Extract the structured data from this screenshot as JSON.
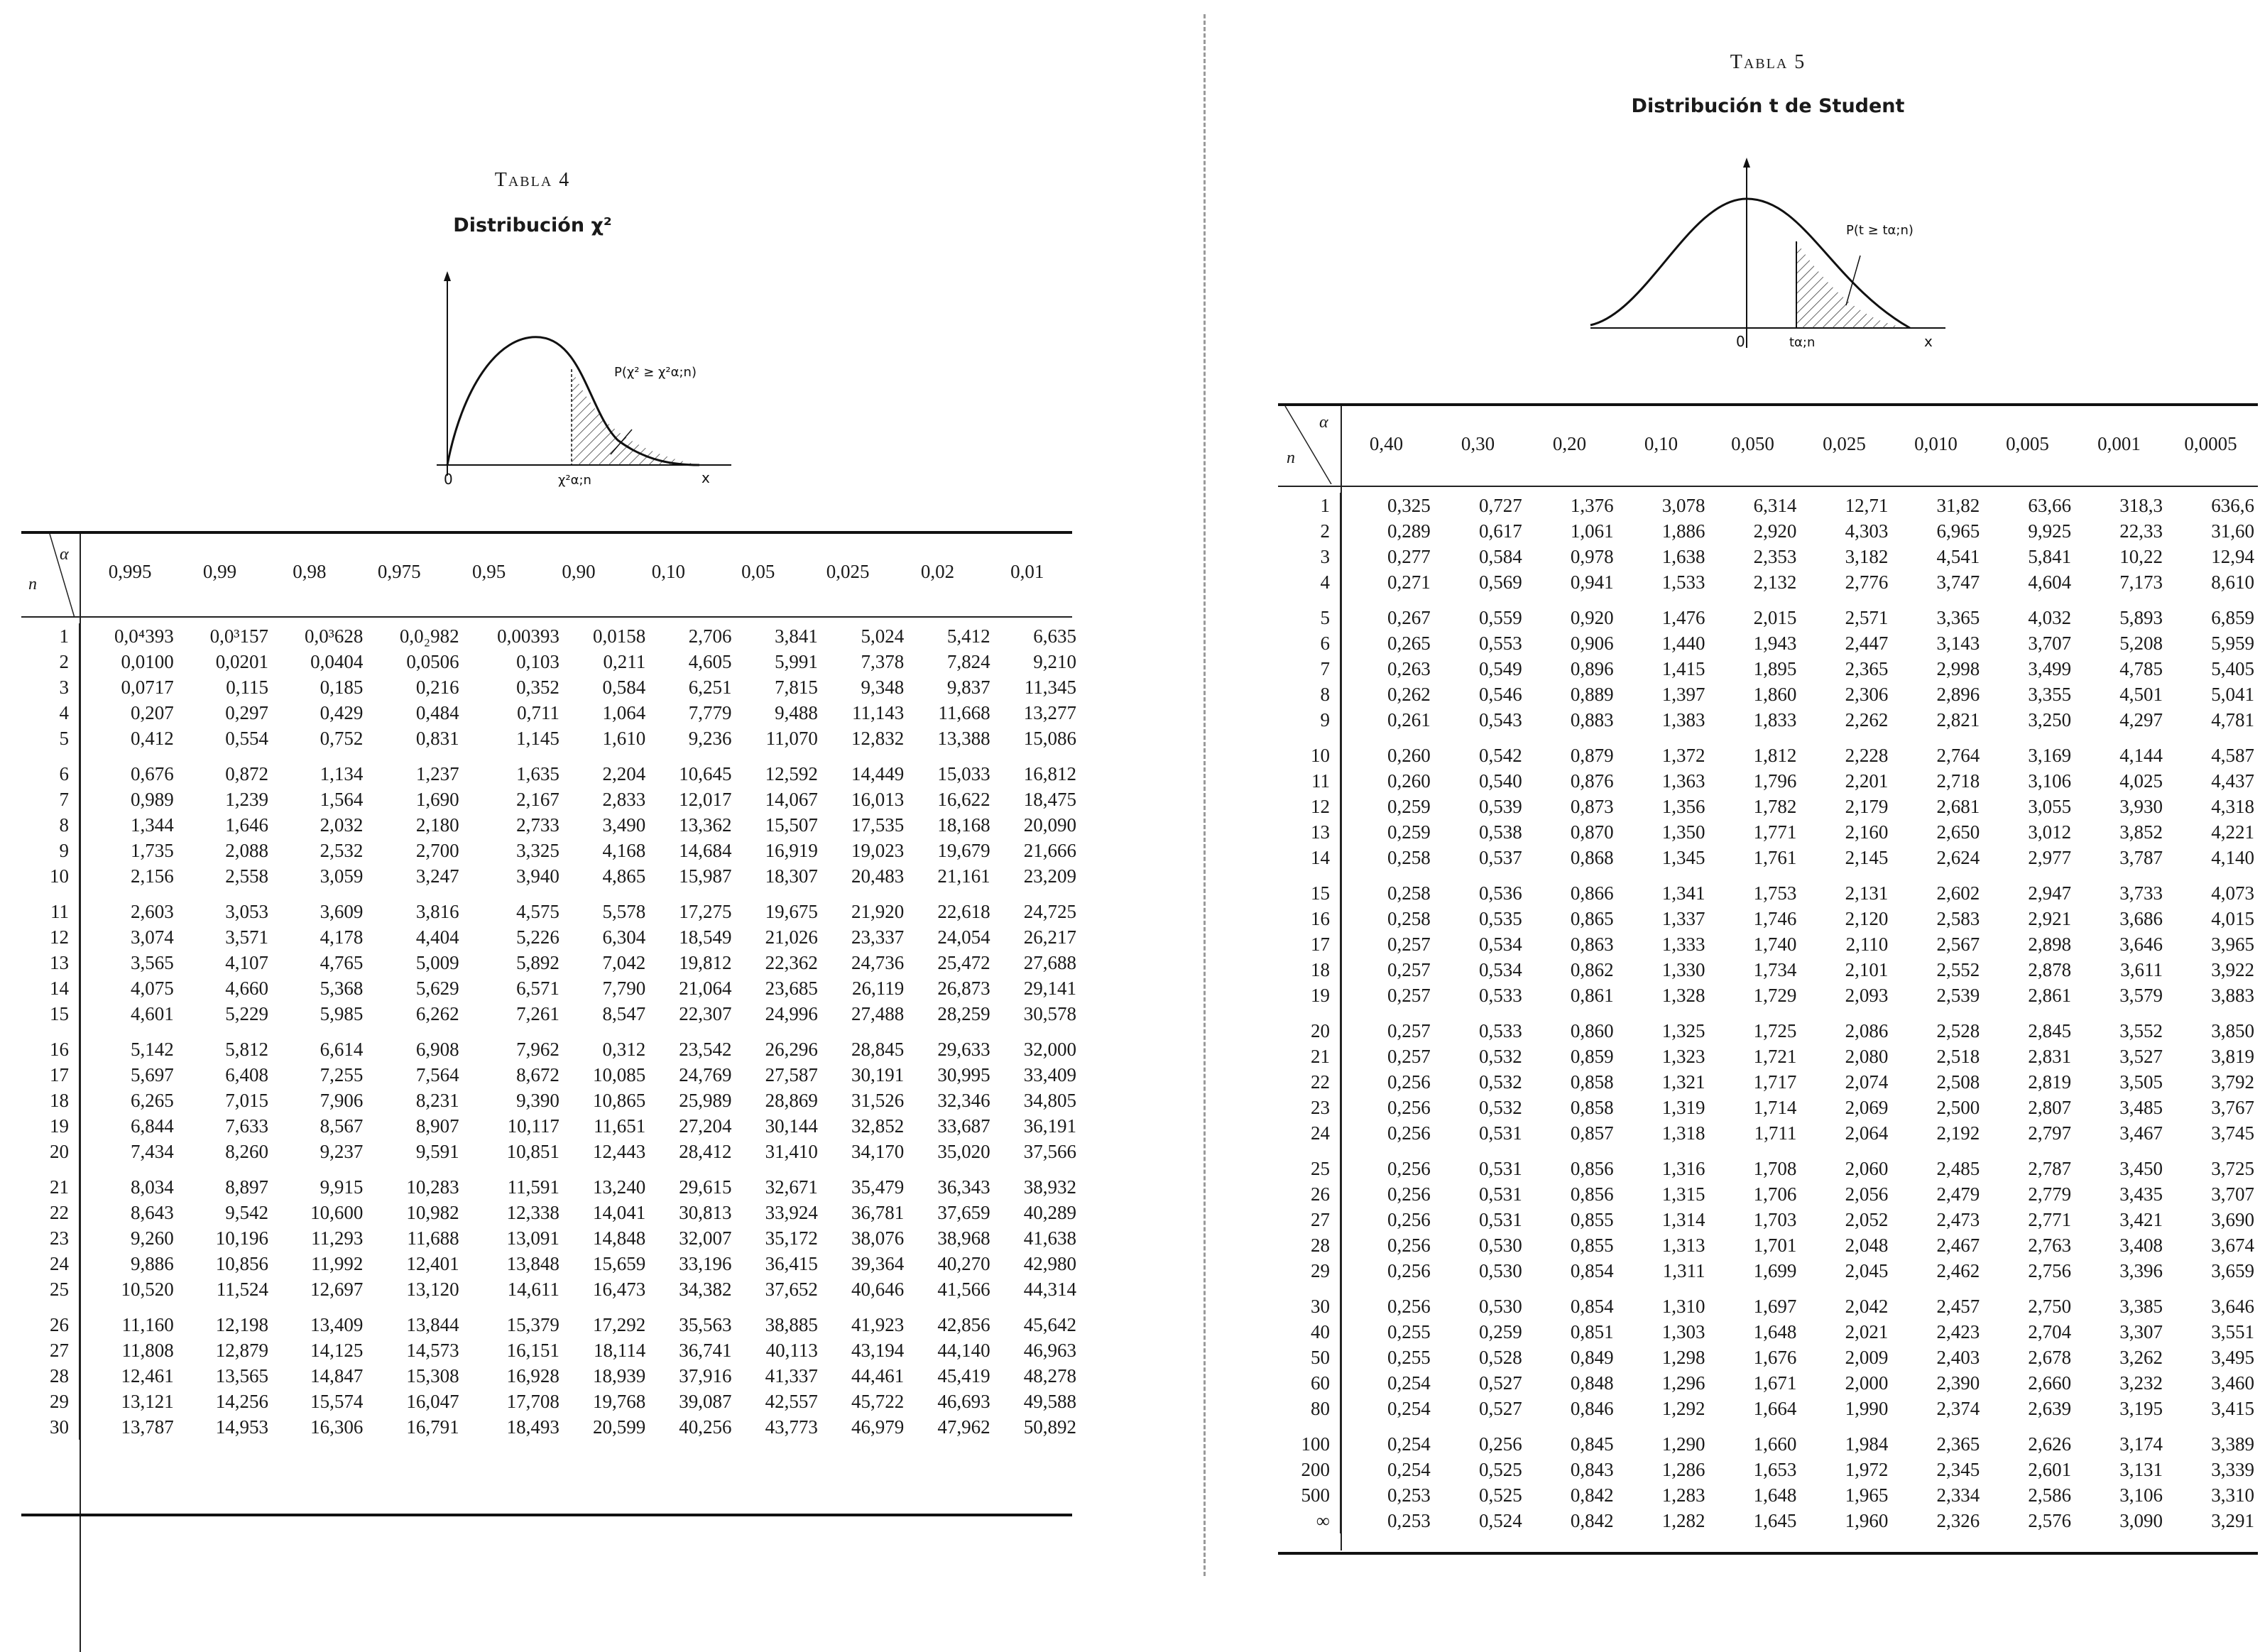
{
  "chi2": {
    "table_label": "Tabla 4",
    "title": "Distribución χ²",
    "graph": {
      "probability_label": "P(χ² ≥ χ²α;n)",
      "crit_label": "χ²α;n",
      "origin_label": "0",
      "x_label": "x"
    },
    "row_header": "n",
    "col_header": "α",
    "alphas": [
      "0,995",
      "0,99",
      "0,98",
      "0,975",
      "0,95",
      "0,90",
      "0,10",
      "0,05",
      "0,025",
      "0,02",
      "0,01"
    ],
    "rows": [
      {
        "n": "1",
        "v": [
          "0,0⁴393",
          "0,0³157",
          "0,0³628",
          "0,0₂982",
          "0,00393",
          "0,0158",
          "2,706",
          "3,841",
          "5,024",
          "5,412",
          "6,635"
        ]
      },
      {
        "n": "2",
        "v": [
          "0,0100",
          "0,0201",
          "0,0404",
          "0,0506",
          "0,103",
          "0,211",
          "4,605",
          "5,991",
          "7,378",
          "7,824",
          "9,210"
        ]
      },
      {
        "n": "3",
        "v": [
          "0,0717",
          "0,115",
          "0,185",
          "0,216",
          "0,352",
          "0,584",
          "6,251",
          "7,815",
          "9,348",
          "9,837",
          "11,345"
        ]
      },
      {
        "n": "4",
        "v": [
          "0,207",
          "0,297",
          "0,429",
          "0,484",
          "0,711",
          "1,064",
          "7,779",
          "9,488",
          "11,143",
          "11,668",
          "13,277"
        ]
      },
      {
        "n": "5",
        "v": [
          "0,412",
          "0,554",
          "0,752",
          "0,831",
          "1,145",
          "1,610",
          "9,236",
          "11,070",
          "12,832",
          "13,388",
          "15,086"
        ]
      },
      {
        "n": "6",
        "v": [
          "0,676",
          "0,872",
          "1,134",
          "1,237",
          "1,635",
          "2,204",
          "10,645",
          "12,592",
          "14,449",
          "15,033",
          "16,812"
        ]
      },
      {
        "n": "7",
        "v": [
          "0,989",
          "1,239",
          "1,564",
          "1,690",
          "2,167",
          "2,833",
          "12,017",
          "14,067",
          "16,013",
          "16,622",
          "18,475"
        ]
      },
      {
        "n": "8",
        "v": [
          "1,344",
          "1,646",
          "2,032",
          "2,180",
          "2,733",
          "3,490",
          "13,362",
          "15,507",
          "17,535",
          "18,168",
          "20,090"
        ]
      },
      {
        "n": "9",
        "v": [
          "1,735",
          "2,088",
          "2,532",
          "2,700",
          "3,325",
          "4,168",
          "14,684",
          "16,919",
          "19,023",
          "19,679",
          "21,666"
        ]
      },
      {
        "n": "10",
        "v": [
          "2,156",
          "2,558",
          "3,059",
          "3,247",
          "3,940",
          "4,865",
          "15,987",
          "18,307",
          "20,483",
          "21,161",
          "23,209"
        ]
      },
      {
        "n": "11",
        "v": [
          "2,603",
          "3,053",
          "3,609",
          "3,816",
          "4,575",
          "5,578",
          "17,275",
          "19,675",
          "21,920",
          "22,618",
          "24,725"
        ]
      },
      {
        "n": "12",
        "v": [
          "3,074",
          "3,571",
          "4,178",
          "4,404",
          "5,226",
          "6,304",
          "18,549",
          "21,026",
          "23,337",
          "24,054",
          "26,217"
        ]
      },
      {
        "n": "13",
        "v": [
          "3,565",
          "4,107",
          "4,765",
          "5,009",
          "5,892",
          "7,042",
          "19,812",
          "22,362",
          "24,736",
          "25,472",
          "27,688"
        ]
      },
      {
        "n": "14",
        "v": [
          "4,075",
          "4,660",
          "5,368",
          "5,629",
          "6,571",
          "7,790",
          "21,064",
          "23,685",
          "26,119",
          "26,873",
          "29,141"
        ]
      },
      {
        "n": "15",
        "v": [
          "4,601",
          "5,229",
          "5,985",
          "6,262",
          "7,261",
          "8,547",
          "22,307",
          "24,996",
          "27,488",
          "28,259",
          "30,578"
        ]
      },
      {
        "n": "16",
        "v": [
          "5,142",
          "5,812",
          "6,614",
          "6,908",
          "7,962",
          "0,312",
          "23,542",
          "26,296",
          "28,845",
          "29,633",
          "32,000"
        ]
      },
      {
        "n": "17",
        "v": [
          "5,697",
          "6,408",
          "7,255",
          "7,564",
          "8,672",
          "10,085",
          "24,769",
          "27,587",
          "30,191",
          "30,995",
          "33,409"
        ]
      },
      {
        "n": "18",
        "v": [
          "6,265",
          "7,015",
          "7,906",
          "8,231",
          "9,390",
          "10,865",
          "25,989",
          "28,869",
          "31,526",
          "32,346",
          "34,805"
        ]
      },
      {
        "n": "19",
        "v": [
          "6,844",
          "7,633",
          "8,567",
          "8,907",
          "10,117",
          "11,651",
          "27,204",
          "30,144",
          "32,852",
          "33,687",
          "36,191"
        ]
      },
      {
        "n": "20",
        "v": [
          "7,434",
          "8,260",
          "9,237",
          "9,591",
          "10,851",
          "12,443",
          "28,412",
          "31,410",
          "34,170",
          "35,020",
          "37,566"
        ]
      },
      {
        "n": "21",
        "v": [
          "8,034",
          "8,897",
          "9,915",
          "10,283",
          "11,591",
          "13,240",
          "29,615",
          "32,671",
          "35,479",
          "36,343",
          "38,932"
        ]
      },
      {
        "n": "22",
        "v": [
          "8,643",
          "9,542",
          "10,600",
          "10,982",
          "12,338",
          "14,041",
          "30,813",
          "33,924",
          "36,781",
          "37,659",
          "40,289"
        ]
      },
      {
        "n": "23",
        "v": [
          "9,260",
          "10,196",
          "11,293",
          "11,688",
          "13,091",
          "14,848",
          "32,007",
          "35,172",
          "38,076",
          "38,968",
          "41,638"
        ]
      },
      {
        "n": "24",
        "v": [
          "9,886",
          "10,856",
          "11,992",
          "12,401",
          "13,848",
          "15,659",
          "33,196",
          "36,415",
          "39,364",
          "40,270",
          "42,980"
        ]
      },
      {
        "n": "25",
        "v": [
          "10,520",
          "11,524",
          "12,697",
          "13,120",
          "14,611",
          "16,473",
          "34,382",
          "37,652",
          "40,646",
          "41,566",
          "44,314"
        ]
      },
      {
        "n": "26",
        "v": [
          "11,160",
          "12,198",
          "13,409",
          "13,844",
          "15,379",
          "17,292",
          "35,563",
          "38,885",
          "41,923",
          "42,856",
          "45,642"
        ]
      },
      {
        "n": "27",
        "v": [
          "11,808",
          "12,879",
          "14,125",
          "14,573",
          "16,151",
          "18,114",
          "36,741",
          "40,113",
          "43,194",
          "44,140",
          "46,963"
        ]
      },
      {
        "n": "28",
        "v": [
          "12,461",
          "13,565",
          "14,847",
          "15,308",
          "16,928",
          "18,939",
          "37,916",
          "41,337",
          "44,461",
          "45,419",
          "48,278"
        ]
      },
      {
        "n": "29",
        "v": [
          "13,121",
          "14,256",
          "15,574",
          "16,047",
          "17,708",
          "19,768",
          "39,087",
          "42,557",
          "45,722",
          "46,693",
          "49,588"
        ]
      },
      {
        "n": "30",
        "v": [
          "13,787",
          "14,953",
          "16,306",
          "16,791",
          "18,493",
          "20,599",
          "40,256",
          "43,773",
          "46,979",
          "47,962",
          "50,892"
        ]
      }
    ]
  },
  "student": {
    "table_label": "Tabla 5",
    "title": "Distribución t de Student",
    "graph": {
      "probability_label": "P(t ≥ tα;n)",
      "crit_label": "tα;n",
      "origin_label": "0",
      "x_label": "x"
    },
    "row_header": "n",
    "col_header": "α",
    "alphas": [
      "0,40",
      "0,30",
      "0,20",
      "0,10",
      "0,050",
      "0,025",
      "0,010",
      "0,005",
      "0,001",
      "0,0005"
    ],
    "rows": [
      {
        "n": "1",
        "v": [
          "0,325",
          "0,727",
          "1,376",
          "3,078",
          "6,314",
          "12,71",
          "31,82",
          "63,66",
          "318,3",
          "636,6"
        ]
      },
      {
        "n": "2",
        "v": [
          "0,289",
          "0,617",
          "1,061",
          "1,886",
          "2,920",
          "4,303",
          "6,965",
          "9,925",
          "22,33",
          "31,60"
        ]
      },
      {
        "n": "3",
        "v": [
          "0,277",
          "0,584",
          "0,978",
          "1,638",
          "2,353",
          "3,182",
          "4,541",
          "5,841",
          "10,22",
          "12,94"
        ]
      },
      {
        "n": "4",
        "v": [
          "0,271",
          "0,569",
          "0,941",
          "1,533",
          "2,132",
          "2,776",
          "3,747",
          "4,604",
          "7,173",
          "8,610"
        ]
      },
      {
        "n": "5",
        "v": [
          "0,267",
          "0,559",
          "0,920",
          "1,476",
          "2,015",
          "2,571",
          "3,365",
          "4,032",
          "5,893",
          "6,859"
        ]
      },
      {
        "n": "6",
        "v": [
          "0,265",
          "0,553",
          "0,906",
          "1,440",
          "1,943",
          "2,447",
          "3,143",
          "3,707",
          "5,208",
          "5,959"
        ]
      },
      {
        "n": "7",
        "v": [
          "0,263",
          "0,549",
          "0,896",
          "1,415",
          "1,895",
          "2,365",
          "2,998",
          "3,499",
          "4,785",
          "5,405"
        ]
      },
      {
        "n": "8",
        "v": [
          "0,262",
          "0,546",
          "0,889",
          "1,397",
          "1,860",
          "2,306",
          "2,896",
          "3,355",
          "4,501",
          "5,041"
        ]
      },
      {
        "n": "9",
        "v": [
          "0,261",
          "0,543",
          "0,883",
          "1,383",
          "1,833",
          "2,262",
          "2,821",
          "3,250",
          "4,297",
          "4,781"
        ]
      },
      {
        "n": "10",
        "v": [
          "0,260",
          "0,542",
          "0,879",
          "1,372",
          "1,812",
          "2,228",
          "2,764",
          "3,169",
          "4,144",
          "4,587"
        ]
      },
      {
        "n": "11",
        "v": [
          "0,260",
          "0,540",
          "0,876",
          "1,363",
          "1,796",
          "2,201",
          "2,718",
          "3,106",
          "4,025",
          "4,437"
        ]
      },
      {
        "n": "12",
        "v": [
          "0,259",
          "0,539",
          "0,873",
          "1,356",
          "1,782",
          "2,179",
          "2,681",
          "3,055",
          "3,930",
          "4,318"
        ]
      },
      {
        "n": "13",
        "v": [
          "0,259",
          "0,538",
          "0,870",
          "1,350",
          "1,771",
          "2,160",
          "2,650",
          "3,012",
          "3,852",
          "4,221"
        ]
      },
      {
        "n": "14",
        "v": [
          "0,258",
          "0,537",
          "0,868",
          "1,345",
          "1,761",
          "2,145",
          "2,624",
          "2,977",
          "3,787",
          "4,140"
        ]
      },
      {
        "n": "15",
        "v": [
          "0,258",
          "0,536",
          "0,866",
          "1,341",
          "1,753",
          "2,131",
          "2,602",
          "2,947",
          "3,733",
          "4,073"
        ]
      },
      {
        "n": "16",
        "v": [
          "0,258",
          "0,535",
          "0,865",
          "1,337",
          "1,746",
          "2,120",
          "2,583",
          "2,921",
          "3,686",
          "4,015"
        ]
      },
      {
        "n": "17",
        "v": [
          "0,257",
          "0,534",
          "0,863",
          "1,333",
          "1,740",
          "2,110",
          "2,567",
          "2,898",
          "3,646",
          "3,965"
        ]
      },
      {
        "n": "18",
        "v": [
          "0,257",
          "0,534",
          "0,862",
          "1,330",
          "1,734",
          "2,101",
          "2,552",
          "2,878",
          "3,611",
          "3,922"
        ]
      },
      {
        "n": "19",
        "v": [
          "0,257",
          "0,533",
          "0,861",
          "1,328",
          "1,729",
          "2,093",
          "2,539",
          "2,861",
          "3,579",
          "3,883"
        ]
      },
      {
        "n": "20",
        "v": [
          "0,257",
          "0,533",
          "0,860",
          "1,325",
          "1,725",
          "2,086",
          "2,528",
          "2,845",
          "3,552",
          "3,850"
        ]
      },
      {
        "n": "21",
        "v": [
          "0,257",
          "0,532",
          "0,859",
          "1,323",
          "1,721",
          "2,080",
          "2,518",
          "2,831",
          "3,527",
          "3,819"
        ]
      },
      {
        "n": "22",
        "v": [
          "0,256",
          "0,532",
          "0,858",
          "1,321",
          "1,717",
          "2,074",
          "2,508",
          "2,819",
          "3,505",
          "3,792"
        ]
      },
      {
        "n": "23",
        "v": [
          "0,256",
          "0,532",
          "0,858",
          "1,319",
          "1,714",
          "2,069",
          "2,500",
          "2,807",
          "3,485",
          "3,767"
        ]
      },
      {
        "n": "24",
        "v": [
          "0,256",
          "0,531",
          "0,857",
          "1,318",
          "1,711",
          "2,064",
          "2,192",
          "2,797",
          "3,467",
          "3,745"
        ]
      },
      {
        "n": "25",
        "v": [
          "0,256",
          "0,531",
          "0,856",
          "1,316",
          "1,708",
          "2,060",
          "2,485",
          "2,787",
          "3,450",
          "3,725"
        ]
      },
      {
        "n": "26",
        "v": [
          "0,256",
          "0,531",
          "0,856",
          "1,315",
          "1,706",
          "2,056",
          "2,479",
          "2,779",
          "3,435",
          "3,707"
        ]
      },
      {
        "n": "27",
        "v": [
          "0,256",
          "0,531",
          "0,855",
          "1,314",
          "1,703",
          "2,052",
          "2,473",
          "2,771",
          "3,421",
          "3,690"
        ]
      },
      {
        "n": "28",
        "v": [
          "0,256",
          "0,530",
          "0,855",
          "1,313",
          "1,701",
          "2,048",
          "2,467",
          "2,763",
          "3,408",
          "3,674"
        ]
      },
      {
        "n": "29",
        "v": [
          "0,256",
          "0,530",
          "0,854",
          "1,311",
          "1,699",
          "2,045",
          "2,462",
          "2,756",
          "3,396",
          "3,659"
        ]
      },
      {
        "n": "30",
        "v": [
          "0,256",
          "0,530",
          "0,854",
          "1,310",
          "1,697",
          "2,042",
          "2,457",
          "2,750",
          "3,385",
          "3,646"
        ]
      },
      {
        "n": "40",
        "v": [
          "0,255",
          "0,259",
          "0,851",
          "1,303",
          "1,648",
          "2,021",
          "2,423",
          "2,704",
          "3,307",
          "3,551"
        ]
      },
      {
        "n": "50",
        "v": [
          "0,255",
          "0,528",
          "0,849",
          "1,298",
          "1,676",
          "2,009",
          "2,403",
          "2,678",
          "3,262",
          "3,495"
        ]
      },
      {
        "n": "60",
        "v": [
          "0,254",
          "0,527",
          "0,848",
          "1,296",
          "1,671",
          "2,000",
          "2,390",
          "2,660",
          "3,232",
          "3,460"
        ]
      },
      {
        "n": "80",
        "v": [
          "0,254",
          "0,527",
          "0,846",
          "1,292",
          "1,664",
          "1,990",
          "2,374",
          "2,639",
          "3,195",
          "3,415"
        ]
      },
      {
        "n": "100",
        "v": [
          "0,254",
          "0,256",
          "0,845",
          "1,290",
          "1,660",
          "1,984",
          "2,365",
          "2,626",
          "3,174",
          "3,389"
        ]
      },
      {
        "n": "200",
        "v": [
          "0,254",
          "0,525",
          "0,843",
          "1,286",
          "1,653",
          "1,972",
          "2,345",
          "2,601",
          "3,131",
          "3,339"
        ]
      },
      {
        "n": "500",
        "v": [
          "0,253",
          "0,525",
          "0,842",
          "1,283",
          "1,648",
          "1,965",
          "2,334",
          "2,586",
          "3,106",
          "3,310"
        ]
      },
      {
        "n": "∞",
        "v": [
          "0,253",
          "0,524",
          "0,842",
          "1,282",
          "1,645",
          "1,960",
          "2,326",
          "2,576",
          "3,090",
          "3,291"
        ]
      }
    ]
  }
}
